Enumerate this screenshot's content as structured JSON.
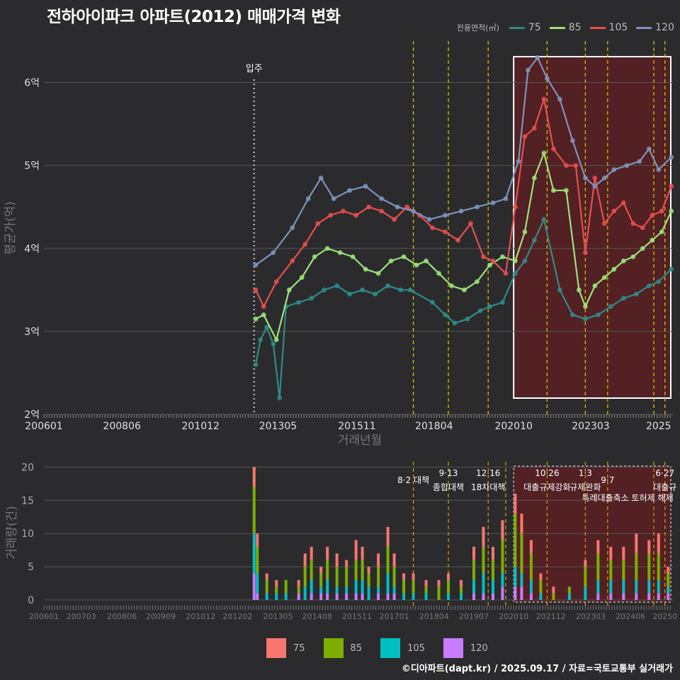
{
  "title": "전하아이파크 아파트(2012) 매매가격 변화",
  "footer": "©디아파트(dapt.kr) / 2025.09.17 / 자료=국토교통부 실거래가",
  "colors": {
    "background": "#2b2b2d",
    "grid": "#555555",
    "s75": "#2e8c88",
    "s85": "#9be37a",
    "s105": "#e64f4f",
    "s120": "#7f93bd",
    "b75": "#f8766d",
    "b85": "#7cae00",
    "b105": "#00bfc4",
    "b120": "#c77cff",
    "policy": "#d4c100",
    "highlight_fill": "#5a1f22"
  },
  "legend_top": {
    "title": "전용면적(㎡)",
    "items": [
      "75",
      "85",
      "105",
      "120"
    ]
  },
  "legend_bottom": {
    "items": [
      "75",
      "85",
      "105",
      "120"
    ]
  },
  "chart_data": [
    {
      "type": "line",
      "title": "전하아이파크 아파트(2012) 매매가격 변화",
      "xlabel": "거래년월",
      "ylabel": "평균가(억)",
      "ylim": [
        2,
        6.5
      ],
      "yticks": [
        2,
        3,
        4,
        5,
        6
      ],
      "ytick_labels": [
        "2억",
        "3억",
        "4억",
        "5억",
        "6억"
      ],
      "xticks": [
        "200601",
        "200806",
        "201012",
        "201305",
        "201511",
        "201804",
        "202010",
        "202303",
        "2025"
      ],
      "xlim": [
        2006.0,
        2025.75
      ],
      "annotation": {
        "x": 2012.6,
        "label": "입주"
      },
      "policy_lines": [
        2017.6,
        2018.7,
        2019.95,
        2021.8,
        2023.0,
        2023.7,
        2025.15,
        2025.5
      ],
      "highlight_range": [
        2020.75,
        2025.75
      ],
      "series": [
        {
          "name": "75",
          "x": [
            2012.65,
            2012.8,
            2013.0,
            2013.2,
            2013.4,
            2013.6,
            2014.0,
            2014.4,
            2014.8,
            2015.2,
            2015.6,
            2016.0,
            2016.4,
            2016.8,
            2017.2,
            2017.5,
            2018.2,
            2018.6,
            2018.9,
            2019.3,
            2019.7,
            2020.0,
            2020.4,
            2020.8,
            2021.1,
            2021.4,
            2021.7,
            2022.2,
            2022.6,
            2023.0,
            2023.4,
            2023.8,
            2024.2,
            2024.6,
            2025.0,
            2025.3,
            2025.7
          ],
          "values": [
            2.6,
            2.9,
            3.05,
            2.85,
            2.2,
            3.3,
            3.35,
            3.4,
            3.5,
            3.55,
            3.45,
            3.5,
            3.45,
            3.55,
            3.5,
            3.5,
            3.35,
            3.2,
            3.1,
            3.15,
            3.25,
            3.3,
            3.35,
            3.7,
            3.85,
            4.1,
            4.35,
            3.5,
            3.2,
            3.15,
            3.2,
            3.3,
            3.4,
            3.45,
            3.55,
            3.6,
            3.75
          ]
        },
        {
          "name": "85",
          "x": [
            2012.65,
            2012.9,
            2013.3,
            2013.7,
            2014.1,
            2014.5,
            2014.9,
            2015.3,
            2015.7,
            2016.1,
            2016.5,
            2016.9,
            2017.3,
            2017.7,
            2018.0,
            2018.4,
            2018.8,
            2019.2,
            2019.6,
            2020.0,
            2020.4,
            2020.8,
            2021.1,
            2021.4,
            2021.7,
            2022.0,
            2022.4,
            2022.8,
            2023.0,
            2023.3,
            2023.6,
            2023.9,
            2024.2,
            2024.5,
            2024.8,
            2025.1,
            2025.4,
            2025.7
          ],
          "values": [
            3.15,
            3.2,
            2.9,
            3.5,
            3.65,
            3.9,
            4.0,
            3.95,
            3.9,
            3.75,
            3.7,
            3.85,
            3.9,
            3.8,
            3.85,
            3.7,
            3.55,
            3.5,
            3.6,
            3.8,
            3.9,
            3.85,
            4.2,
            4.85,
            5.15,
            4.7,
            4.7,
            3.5,
            3.3,
            3.55,
            3.65,
            3.75,
            3.85,
            3.9,
            4.0,
            4.1,
            4.2,
            4.45
          ]
        },
        {
          "name": "105",
          "x": [
            2012.65,
            2012.9,
            2013.3,
            2013.8,
            2014.2,
            2014.6,
            2015.0,
            2015.4,
            2015.8,
            2016.2,
            2016.6,
            2017.0,
            2017.4,
            2017.8,
            2018.2,
            2018.6,
            2019.0,
            2019.4,
            2019.8,
            2020.1,
            2020.5,
            2020.8,
            2021.1,
            2021.4,
            2021.7,
            2022.0,
            2022.4,
            2022.7,
            2023.0,
            2023.3,
            2023.6,
            2023.9,
            2024.2,
            2024.5,
            2024.8,
            2025.1,
            2025.4,
            2025.7
          ],
          "values": [
            3.5,
            3.3,
            3.6,
            3.85,
            4.05,
            4.3,
            4.4,
            4.45,
            4.4,
            4.5,
            4.45,
            4.35,
            4.5,
            4.4,
            4.25,
            4.2,
            4.1,
            4.3,
            3.9,
            3.85,
            3.7,
            4.5,
            5.35,
            5.45,
            5.8,
            5.2,
            5.0,
            5.0,
            3.95,
            4.85,
            4.3,
            4.45,
            4.55,
            4.3,
            4.25,
            4.4,
            4.45,
            4.75
          ]
        },
        {
          "name": "120",
          "x": [
            2012.65,
            2013.2,
            2013.8,
            2014.3,
            2014.7,
            2015.1,
            2015.6,
            2016.1,
            2016.6,
            2017.1,
            2017.6,
            2018.1,
            2018.6,
            2019.1,
            2019.6,
            2020.1,
            2020.5,
            2020.9,
            2021.2,
            2021.5,
            2021.8,
            2022.2,
            2022.6,
            2023.0,
            2023.3,
            2023.6,
            2023.9,
            2024.3,
            2024.7,
            2025.0,
            2025.3,
            2025.7
          ],
          "values": [
            3.8,
            3.95,
            4.25,
            4.6,
            4.85,
            4.6,
            4.7,
            4.75,
            4.6,
            4.5,
            4.45,
            4.35,
            4.4,
            4.45,
            4.5,
            4.55,
            4.6,
            5.05,
            6.15,
            6.3,
            6.05,
            5.8,
            5.3,
            4.85,
            4.75,
            4.85,
            4.95,
            5.0,
            5.05,
            5.2,
            4.95,
            5.1
          ]
        }
      ]
    },
    {
      "type": "bar",
      "stacked": true,
      "xlabel": "",
      "ylabel": "거래량(건)",
      "ylim": [
        0,
        21
      ],
      "yticks": [
        0,
        5,
        10,
        15,
        20
      ],
      "xticks": [
        "200601",
        "200703",
        "200806",
        "200909",
        "201012",
        "201202",
        "201305",
        "201408",
        "201511",
        "201701",
        "201804",
        "201907",
        "202010",
        "202112",
        "202303",
        "202406",
        "20250"
      ],
      "xlim": [
        2006.0,
        2025.75
      ],
      "highlight_range": [
        2020.75,
        2025.75
      ],
      "series_names": [
        "75",
        "85",
        "105",
        "120"
      ],
      "bars": [
        {
          "x": 2012.6,
          "values": [
            3,
            7,
            6,
            4
          ]
        },
        {
          "x": 2012.7,
          "values": [
            2,
            4,
            3,
            1
          ]
        },
        {
          "x": 2013.0,
          "values": [
            1,
            2,
            1,
            0
          ]
        },
        {
          "x": 2013.3,
          "values": [
            1,
            1,
            1,
            0
          ]
        },
        {
          "x": 2013.6,
          "values": [
            0,
            2,
            1,
            0
          ]
        },
        {
          "x": 2014.0,
          "values": [
            1,
            1,
            0,
            1
          ]
        },
        {
          "x": 2014.2,
          "values": [
            2,
            3,
            2,
            0
          ]
        },
        {
          "x": 2014.4,
          "values": [
            2,
            3,
            2,
            1
          ]
        },
        {
          "x": 2014.7,
          "values": [
            1,
            2,
            1,
            1
          ]
        },
        {
          "x": 2014.9,
          "values": [
            2,
            3,
            2,
            1
          ]
        },
        {
          "x": 2015.2,
          "values": [
            2,
            3,
            1,
            1
          ]
        },
        {
          "x": 2015.5,
          "values": [
            1,
            3,
            1,
            1
          ]
        },
        {
          "x": 2015.8,
          "values": [
            3,
            3,
            2,
            1
          ]
        },
        {
          "x": 2016.0,
          "values": [
            2,
            3,
            2,
            1
          ]
        },
        {
          "x": 2016.2,
          "values": [
            1,
            2,
            2,
            0
          ]
        },
        {
          "x": 2016.5,
          "values": [
            2,
            3,
            1,
            1
          ]
        },
        {
          "x": 2016.8,
          "values": [
            3,
            4,
            3,
            1
          ]
        },
        {
          "x": 2017.0,
          "values": [
            2,
            3,
            1,
            1
          ]
        },
        {
          "x": 2017.3,
          "values": [
            1,
            2,
            1,
            0
          ]
        },
        {
          "x": 2017.6,
          "values": [
            1,
            2,
            1,
            0
          ]
        },
        {
          "x": 2018.0,
          "values": [
            1,
            1,
            1,
            0
          ]
        },
        {
          "x": 2018.4,
          "values": [
            1,
            2,
            0,
            0
          ]
        },
        {
          "x": 2018.7,
          "values": [
            1,
            2,
            1,
            0
          ]
        },
        {
          "x": 2019.1,
          "values": [
            1,
            1,
            1,
            0
          ]
        },
        {
          "x": 2019.5,
          "values": [
            2,
            3,
            2,
            1
          ]
        },
        {
          "x": 2019.8,
          "values": [
            3,
            4,
            3,
            1
          ]
        },
        {
          "x": 2020.1,
          "values": [
            2,
            3,
            2,
            1
          ]
        },
        {
          "x": 2020.4,
          "values": [
            3,
            5,
            2,
            2
          ]
        },
        {
          "x": 2020.8,
          "values": [
            3,
            8,
            3,
            2
          ]
        },
        {
          "x": 2021.0,
          "values": [
            3,
            6,
            2,
            2
          ]
        },
        {
          "x": 2021.3,
          "values": [
            2,
            4,
            2,
            1
          ]
        },
        {
          "x": 2021.6,
          "values": [
            1,
            2,
            1,
            0
          ]
        },
        {
          "x": 2022.0,
          "values": [
            1,
            1,
            0,
            0
          ]
        },
        {
          "x": 2022.5,
          "values": [
            0,
            1,
            1,
            0
          ]
        },
        {
          "x": 2023.0,
          "values": [
            1,
            3,
            2,
            0
          ]
        },
        {
          "x": 2023.4,
          "values": [
            2,
            4,
            2,
            1
          ]
        },
        {
          "x": 2023.8,
          "values": [
            2,
            3,
            2,
            1
          ]
        },
        {
          "x": 2024.2,
          "values": [
            2,
            3,
            2,
            1
          ]
        },
        {
          "x": 2024.6,
          "values": [
            3,
            4,
            2,
            1
          ]
        },
        {
          "x": 2025.0,
          "values": [
            2,
            4,
            2,
            1
          ]
        },
        {
          "x": 2025.3,
          "values": [
            3,
            4,
            2,
            1
          ]
        },
        {
          "x": 2025.6,
          "values": [
            1,
            2,
            1,
            1
          ]
        }
      ],
      "policy_lines": [
        {
          "x": 2017.6,
          "date": "",
          "label": "8·2 대책"
        },
        {
          "x": 2018.7,
          "date": "9·13",
          "label": "종합대책"
        },
        {
          "x": 2019.95,
          "date": "12·16",
          "label": "18차대책"
        },
        {
          "x": 2020.5,
          "date": "",
          "label": ""
        },
        {
          "x": 2021.8,
          "date": "10·26",
          "label": "대출규제강화"
        },
        {
          "x": 2023.0,
          "date": "1·3",
          "label": "규제완화"
        },
        {
          "x": 2023.7,
          "date": "",
          "label": "9·7"
        },
        {
          "x": 2025.15,
          "date": "",
          "label": ""
        },
        {
          "x": 2025.5,
          "date": "6·27",
          "label": "대출규"
        }
      ],
      "extra_annotation": "특례대출축소 토허제 해제"
    }
  ]
}
